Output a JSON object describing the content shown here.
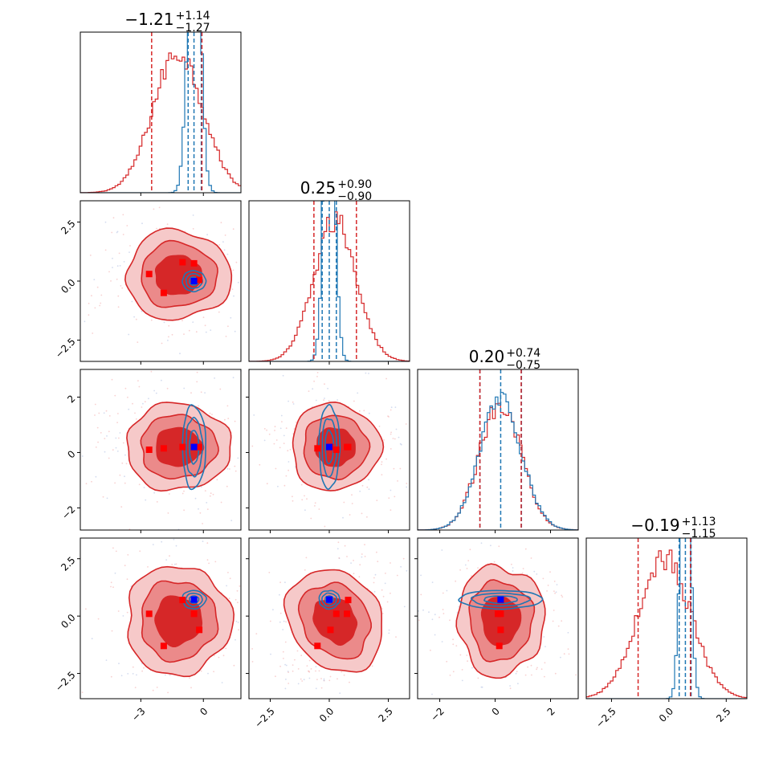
{
  "chart_data": {
    "type": "corner",
    "n_params": 4,
    "colors": {
      "red": "#d62728",
      "blue": "#1f77b4",
      "marker_red": "#ff0000",
      "marker_blue": "#0000ff"
    },
    "titles": [
      {
        "median": "−1.21",
        "plus": "+1.14",
        "minus": "−1.27"
      },
      {
        "median": "0.25",
        "plus": "+0.90",
        "minus": "−0.90"
      },
      {
        "median": "0.20",
        "plus": "+0.74",
        "minus": "−0.75"
      },
      {
        "median": "−0.19",
        "plus": "+1.13",
        "minus": "−1.15"
      }
    ],
    "ranges": [
      [
        -5.9,
        1.8
      ],
      [
        -3.4,
        3.4
      ],
      [
        -2.8,
        3.0
      ],
      [
        -3.6,
        3.4
      ]
    ],
    "ticks": [
      {
        "values": [
          -3,
          0
        ],
        "labels": [
          "−3",
          "0"
        ]
      },
      {
        "values": [
          -2.5,
          0,
          2.5
        ],
        "labels": [
          "−2.5",
          "0.0",
          "2.5"
        ]
      },
      {
        "values": [
          -2,
          0,
          2
        ],
        "labels": [
          "−2",
          "0",
          "2"
        ]
      },
      {
        "values": [
          -2.5,
          0,
          2.5
        ],
        "labels": [
          "−2.5",
          "0.0",
          "2.5"
        ]
      }
    ],
    "red_posterior": {
      "mean": [
        -1.21,
        0.25,
        0.2,
        -0.19
      ],
      "sigma": [
        1.2,
        0.9,
        0.75,
        1.14
      ],
      "quantiles": [
        [
          -2.48,
          -1.21,
          -0.07
        ],
        [
          -0.65,
          0.25,
          1.15
        ],
        [
          -0.55,
          0.2,
          0.94
        ],
        [
          -1.34,
          -0.19,
          0.94
        ]
      ],
      "corr": {
        "3-1": 0.45
      }
    },
    "blue_posterior": {
      "mean": [
        -0.45,
        0.0,
        0.2,
        0.72
      ],
      "sigma": [
        0.28,
        0.22,
        0.75,
        0.2
      ],
      "quantiles": [
        [
          -0.73,
          -0.45,
          -0.1
        ],
        [
          -0.3,
          0.0,
          0.3
        ],
        [
          -0.55,
          0.2,
          0.95
        ],
        [
          0.45,
          0.72,
          0.97
        ]
      ]
    },
    "markers": {
      "red": [
        [
          -2.6,
          0.3,
          0.1,
          0.1
        ],
        [
          -1.9,
          -0.5,
          0.15,
          -1.3
        ],
        [
          -1.0,
          0.8,
          0.2,
          0.7
        ],
        [
          -0.2,
          0.05,
          0.2,
          -0.6
        ],
        [
          -0.45,
          0.75,
          0.2,
          0.1
        ]
      ],
      "blue": [
        [
          -0.45,
          0.0,
          0.2,
          0.72
        ]
      ]
    }
  }
}
